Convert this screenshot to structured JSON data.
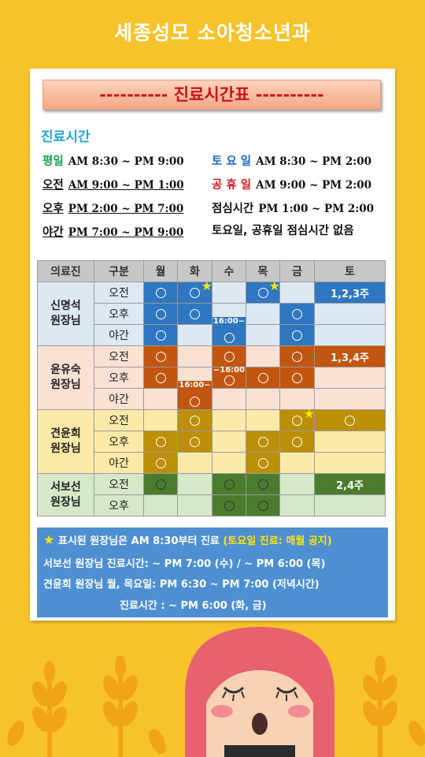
{
  "title": "세종성모 소아청소년과",
  "banner": "---------- 진료시간표 ----------",
  "hours_heading": "진료시간",
  "hours": {
    "weekday": {
      "label": "평일",
      "time": "AM 8:30 ~ PM 9:00"
    },
    "morning": {
      "label": "오전",
      "time": "AM 9:00 ~ PM 1:00"
    },
    "afternoon": {
      "label": "오후",
      "time": "PM 2:00 ~ PM 7:00"
    },
    "night": {
      "label": "야간",
      "time": "PM 7:00 ~ PM 9:00"
    },
    "saturday": {
      "label": "토 요 일",
      "time": "AM 8:30 ~ PM 2:00"
    },
    "holiday": {
      "label": "공 휴 일",
      "time": "AM 9:00 ~ PM 2:00"
    },
    "lunch": {
      "label": "점심시간",
      "time": "PM 1:00 ~ PM 2:00"
    },
    "lunch_note": "토요일, 공휴일 점심시간 없음"
  },
  "table": {
    "headers": [
      "의료진",
      "구분",
      "월",
      "화",
      "수",
      "목",
      "금",
      "토"
    ],
    "doctors": [
      {
        "line1": "신명석",
        "line2": "원장님"
      },
      {
        "line1": "윤유숙",
        "line2": "원장님"
      },
      {
        "line1": "견윤희",
        "line2": "원장님"
      },
      {
        "line1": "서보선",
        "line2": "원장님"
      }
    ],
    "sessions": {
      "am": "오전",
      "pm": "오후",
      "night": "야간"
    },
    "circle": "○",
    "star": "★",
    "tags": {
      "t1600a": "16:00~",
      "t1600b": "~16:00",
      "t1600c": "16:00~"
    },
    "sat_weeks": {
      "d1": "1,2,3주",
      "d2": "1,3,4주",
      "d4": "2,4주"
    }
  },
  "notes": {
    "line1_star": "★",
    "line1_a": "표시된 원장님은 AM 8:30부터 진료",
    "line1_b": "(토요일 진료: 매월 공지)",
    "line2": "서보선 원장님 진료시간: ~ PM 7:00 (수) / ~ PM 6:00 (목)",
    "line3": "견윤희 원장님 월, 목요일: PM 6:30 ~ PM 7:00 (저녁시간)",
    "line4": "진료시간 : ~ PM 6:00 (화, 금)"
  },
  "colors": {
    "background": "#f7c32a",
    "doc1": "#2f77c0",
    "doc2": "#c2550f",
    "doc3": "#bd8f06",
    "doc4": "#4b7c2e"
  }
}
